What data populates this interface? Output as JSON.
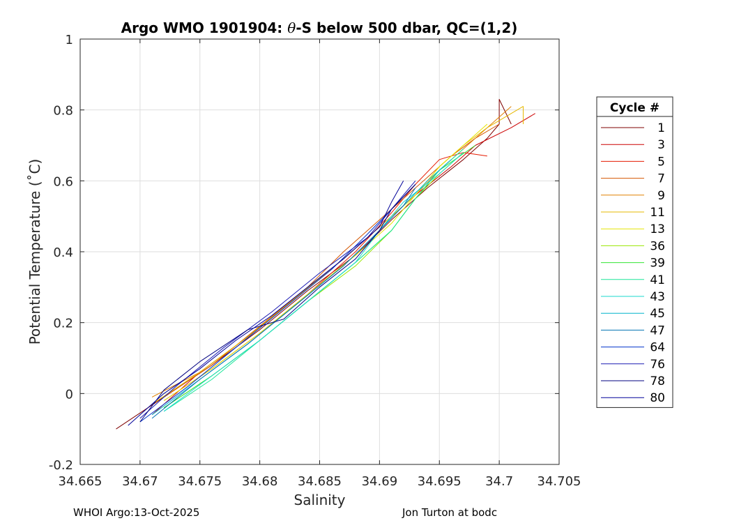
{
  "chart_data": {
    "type": "line",
    "title_prefix": "Argo WMO 1901904: ",
    "title_theta": "θ",
    "title_suffix": "-S below 500 dbar,  QC=(1,2)",
    "xlabel": "Salinity",
    "ylabel": "Potential Temperature (˚C)",
    "xlim": [
      34.665,
      34.705
    ],
    "ylim": [
      -0.2,
      1
    ],
    "xticks": [
      "34.665",
      "34.67",
      "34.675",
      "34.68",
      "34.685",
      "34.69",
      "34.695",
      "34.7",
      "34.705"
    ],
    "yticks": [
      "-0.2",
      "0",
      "0.2",
      "0.4",
      "0.6",
      "0.8",
      "1"
    ],
    "grid": true,
    "legend_title": "Cycle #",
    "legend_position": "right",
    "series": [
      {
        "name": "1",
        "color": "#7f0000",
        "x": [
          34.668,
          34.672,
          34.676,
          34.68,
          34.684,
          34.688,
          34.691,
          34.694,
          34.697,
          34.699,
          34.7,
          34.7,
          34.701
        ],
        "y": [
          -0.1,
          -0.01,
          0.08,
          0.18,
          0.29,
          0.39,
          0.49,
          0.58,
          0.66,
          0.72,
          0.76,
          0.83,
          0.76
        ]
      },
      {
        "name": "3",
        "color": "#cc0000",
        "x": [
          34.671,
          34.675,
          34.679,
          34.683,
          34.687,
          34.69,
          34.693,
          34.696,
          34.698,
          34.701,
          34.703
        ],
        "y": [
          -0.06,
          0.06,
          0.16,
          0.27,
          0.38,
          0.47,
          0.56,
          0.64,
          0.7,
          0.75,
          0.79
        ]
      },
      {
        "name": "5",
        "color": "#e61a00",
        "x": [
          34.672,
          34.676,
          34.68,
          34.684,
          34.688,
          34.691,
          34.693,
          34.695,
          34.697,
          34.699
        ],
        "y": [
          -0.02,
          0.07,
          0.17,
          0.28,
          0.4,
          0.51,
          0.59,
          0.66,
          0.68,
          0.67
        ]
      },
      {
        "name": "7",
        "color": "#d45500",
        "x": [
          34.672,
          34.676,
          34.68,
          34.684,
          34.687,
          34.69,
          34.692,
          34.694,
          34.696,
          34.698,
          34.7
        ],
        "y": [
          -0.01,
          0.08,
          0.19,
          0.3,
          0.4,
          0.49,
          0.55,
          0.61,
          0.67,
          0.72,
          0.76
        ]
      },
      {
        "name": "9",
        "color": "#e08000",
        "x": [
          34.671,
          34.675,
          34.679,
          34.683,
          34.687,
          34.69,
          34.693,
          34.695,
          34.697,
          34.699,
          34.701
        ],
        "y": [
          -0.01,
          0.06,
          0.16,
          0.27,
          0.38,
          0.47,
          0.56,
          0.63,
          0.69,
          0.75,
          0.81
        ]
      },
      {
        "name": "11",
        "color": "#e6b800",
        "x": [
          34.671,
          34.675,
          34.679,
          34.683,
          34.687,
          34.69,
          34.693,
          34.695,
          34.697,
          34.699,
          34.702,
          34.702
        ],
        "y": [
          -0.03,
          0.06,
          0.16,
          0.27,
          0.38,
          0.47,
          0.56,
          0.64,
          0.7,
          0.75,
          0.81,
          0.76
        ]
      },
      {
        "name": "13",
        "color": "#e6e600",
        "x": [
          34.672,
          34.676,
          34.68,
          34.684,
          34.688,
          34.691,
          34.693,
          34.695,
          34.697,
          34.699
        ],
        "y": [
          -0.02,
          0.07,
          0.17,
          0.28,
          0.39,
          0.48,
          0.56,
          0.64,
          0.7,
          0.76
        ]
      },
      {
        "name": "36",
        "color": "#99e600",
        "x": [
          34.672,
          34.676,
          34.68,
          34.684,
          34.688,
          34.691,
          34.693,
          34.695,
          34.697
        ],
        "y": [
          -0.04,
          0.05,
          0.15,
          0.26,
          0.36,
          0.46,
          0.55,
          0.62,
          0.68
        ]
      },
      {
        "name": "39",
        "color": "#33e633",
        "x": [
          34.672,
          34.676,
          34.68,
          34.684,
          34.688,
          34.691,
          34.693,
          34.695,
          34.698
        ],
        "y": [
          -0.04,
          0.05,
          0.15,
          0.26,
          0.37,
          0.46,
          0.55,
          0.63,
          0.7
        ]
      },
      {
        "name": "41",
        "color": "#1ae699",
        "x": [
          34.672,
          34.676,
          34.68,
          34.684,
          34.688,
          34.691,
          34.693,
          34.695,
          34.697
        ],
        "y": [
          -0.05,
          0.04,
          0.15,
          0.26,
          0.37,
          0.46,
          0.55,
          0.63,
          0.69
        ]
      },
      {
        "name": "43",
        "color": "#1ad9cc",
        "x": [
          34.672,
          34.676,
          34.68,
          34.684,
          34.688,
          34.69,
          34.692,
          34.695,
          34.697
        ],
        "y": [
          -0.05,
          0.05,
          0.15,
          0.26,
          0.37,
          0.46,
          0.54,
          0.62,
          0.68
        ]
      },
      {
        "name": "45",
        "color": "#00b3cc",
        "x": [
          34.671,
          34.675,
          34.679,
          34.683,
          34.687,
          34.69,
          34.692,
          34.694,
          34.696
        ],
        "y": [
          -0.06,
          0.04,
          0.14,
          0.25,
          0.36,
          0.46,
          0.53,
          0.6,
          0.66
        ]
      },
      {
        "name": "47",
        "color": "#0073b3",
        "x": [
          34.671,
          34.675,
          34.679,
          34.683,
          34.687,
          34.69,
          34.692,
          34.693
        ],
        "y": [
          -0.07,
          0.04,
          0.14,
          0.25,
          0.36,
          0.46,
          0.53,
          0.58
        ]
      },
      {
        "name": "64",
        "color": "#0033cc",
        "x": [
          34.67,
          34.674,
          34.678,
          34.682,
          34.686,
          34.689,
          34.691,
          34.693
        ],
        "y": [
          -0.08,
          0.02,
          0.13,
          0.24,
          0.35,
          0.45,
          0.52,
          0.59
        ]
      },
      {
        "name": "76",
        "color": "#1a1ab3",
        "x": [
          34.67,
          34.673,
          34.677,
          34.681,
          34.685,
          34.689,
          34.691,
          34.693
        ],
        "y": [
          -0.07,
          0.02,
          0.13,
          0.23,
          0.34,
          0.44,
          0.52,
          0.6
        ]
      },
      {
        "name": "78",
        "color": "#000080",
        "x": [
          34.67,
          34.672,
          34.675,
          34.679,
          34.682,
          34.685,
          34.688,
          34.69,
          34.691,
          34.693
        ],
        "y": [
          -0.08,
          0.01,
          0.09,
          0.18,
          0.21,
          0.3,
          0.38,
          0.46,
          0.52,
          0.59
        ]
      },
      {
        "name": "80",
        "color": "#000099",
        "x": [
          34.669,
          34.672,
          34.675,
          34.678,
          34.681,
          34.684,
          34.687,
          34.69,
          34.691,
          34.692
        ],
        "y": [
          -0.09,
          0.0,
          0.07,
          0.15,
          0.22,
          0.3,
          0.38,
          0.47,
          0.54,
          0.6
        ]
      }
    ]
  },
  "footer": {
    "left": "WHOI Argo:13-Oct-2025",
    "right": "Jon Turton at bodc"
  }
}
